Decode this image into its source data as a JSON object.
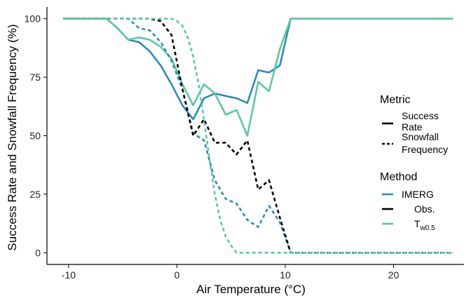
{
  "chart_data": {
    "type": "line",
    "xlabel": "Air Temperature (°C)",
    "ylabel": "Success Rate and Snowfall Frequency (%)",
    "xlim": [
      -12,
      26.5
    ],
    "ylim": [
      -5,
      105
    ],
    "xticks": [
      -10,
      0,
      10,
      20
    ],
    "yticks": [
      0,
      25,
      50,
      75,
      100
    ],
    "grid": false,
    "legend_placement": "right",
    "legend": {
      "metric": {
        "title": "Metric",
        "items": [
          {
            "key": "success",
            "line1": "Success",
            "line2": "Rate",
            "dash": "solid"
          },
          {
            "key": "snowfall",
            "line1": "Snowfall",
            "line2": "Frequency",
            "dash": "dashed"
          }
        ]
      },
      "method": {
        "title": "Method",
        "items": [
          {
            "key": "IMERG",
            "label": "IMERG",
            "color": "#2c8bbd"
          },
          {
            "key": "Obs",
            "label": "Obs.",
            "color": "#000000"
          },
          {
            "key": "Tw",
            "label": "T",
            "sub": "w0.5",
            "color": "#5cc8a0"
          }
        ]
      }
    },
    "series": [
      {
        "method": "IMERG",
        "metric": "success",
        "color": "#2c8bbd",
        "dash": "solid",
        "x": [
          -10.5,
          -6.5,
          -5.5,
          -4.5,
          -3.5,
          -2.5,
          -1.5,
          -0.5,
          0.5,
          1.5,
          2.5,
          3.5,
          4.5,
          5.5,
          6.5,
          7.5,
          8.5,
          9.5,
          10.5,
          25.5
        ],
        "y": [
          100,
          100,
          96,
          91,
          90,
          86,
          80,
          72,
          63,
          57,
          66,
          68,
          67,
          66,
          64,
          78,
          77,
          80,
          100,
          100
        ]
      },
      {
        "method": "Tw",
        "metric": "success",
        "color": "#5cc8a0",
        "dash": "solid",
        "x": [
          -10.5,
          -6.5,
          -5.5,
          -4.5,
          -3.5,
          -2.5,
          -1.5,
          -0.5,
          0.5,
          1.5,
          2.5,
          3.5,
          4.5,
          5.5,
          6.5,
          7.5,
          8.5,
          9.5,
          10.5,
          25.5
        ],
        "y": [
          100,
          100,
          96,
          91,
          92,
          91,
          88,
          83,
          72,
          63,
          72,
          68,
          59,
          61,
          50,
          73,
          69,
          87,
          100,
          100
        ]
      },
      {
        "method": "IMERG",
        "metric": "snowfall",
        "color": "#2c8bbd",
        "dash": "dashed",
        "x": [
          -10.5,
          -6.5,
          -5.5,
          -4.5,
          -3.5,
          -2.5,
          -1.5,
          -0.5,
          0.5,
          1.5,
          2.5,
          3.5,
          4.5,
          5.5,
          6.5,
          7.5,
          8.5,
          9.5,
          10.5,
          25.5
        ],
        "y": [
          100,
          100,
          100,
          100,
          96,
          95,
          90,
          82,
          70,
          51,
          48,
          31,
          23,
          21,
          14,
          11,
          20,
          13,
          0,
          0
        ]
      },
      {
        "method": "Obs",
        "metric": "snowfall",
        "color": "#000000",
        "dash": "dashed",
        "x": [
          -10.5,
          -6.5,
          -5.5,
          -4.5,
          -3.5,
          -2.5,
          -1.5,
          -0.5,
          0.5,
          1.5,
          2.5,
          3.5,
          4.5,
          5.5,
          6.5,
          7.5,
          8.5,
          9.5,
          10.5,
          25.5
        ],
        "y": [
          100,
          100,
          100,
          100,
          100,
          100,
          99,
          93,
          70,
          50,
          57,
          47,
          47,
          42,
          48,
          27,
          31,
          15,
          0,
          0
        ]
      },
      {
        "method": "Tw",
        "metric": "snowfall",
        "color": "#5cc8a0",
        "dash": "dashed",
        "x": [
          -10.5,
          -6.5,
          -1,
          -0.5,
          0,
          0.5,
          1,
          1.5,
          2,
          2.5,
          3,
          3.5,
          4,
          4.5,
          5,
          5.5,
          6.5,
          25.5
        ],
        "y": [
          100,
          100,
          100,
          100,
          99,
          97,
          92,
          84,
          72,
          57,
          40,
          25,
          14,
          7,
          3,
          0,
          0,
          0
        ]
      }
    ]
  }
}
